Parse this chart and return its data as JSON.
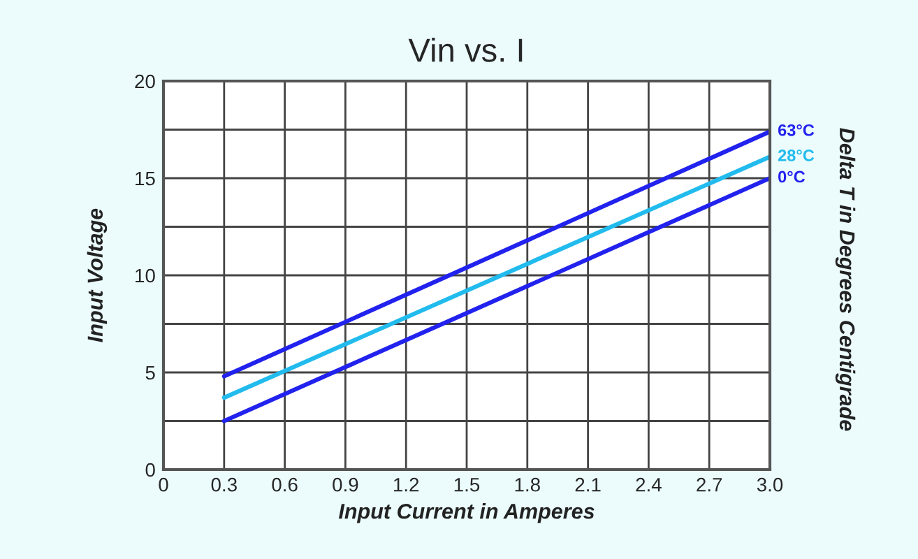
{
  "chart_data": {
    "type": "line",
    "title": "Vin vs. I",
    "xlabel": "Input Current in Amperes",
    "ylabel": "Input Voltage",
    "y2label": "Delta T in Degrees Centigrade",
    "x": [
      0.3,
      3.0
    ],
    "series": [
      {
        "name": "63°C",
        "color": "#2222ee",
        "values": [
          4.8,
          17.4
        ]
      },
      {
        "name": "28°C",
        "color": "#22bbee",
        "values": [
          3.7,
          16.1
        ]
      },
      {
        "name": "0°C",
        "color": "#2222ee",
        "values": [
          2.5,
          15.0
        ]
      }
    ],
    "xlim": [
      0,
      3.0
    ],
    "xticks": [
      0,
      0.3,
      0.6,
      0.9,
      1.2,
      1.5,
      1.8,
      2.1,
      2.4,
      2.7,
      {
        "value": 3,
        "label": "3.0"
      }
    ],
    "ylim": [
      0,
      20
    ],
    "yticks": [
      0,
      {
        "value": 2.5,
        "label": null
      },
      5,
      {
        "value": 7.5,
        "label": null
      },
      10,
      {
        "value": 12.5,
        "label": null
      },
      15,
      {
        "value": 17.5,
        "label": null
      },
      20
    ],
    "grid": true,
    "legend": false,
    "marker": "none",
    "line_style": "solid"
  }
}
